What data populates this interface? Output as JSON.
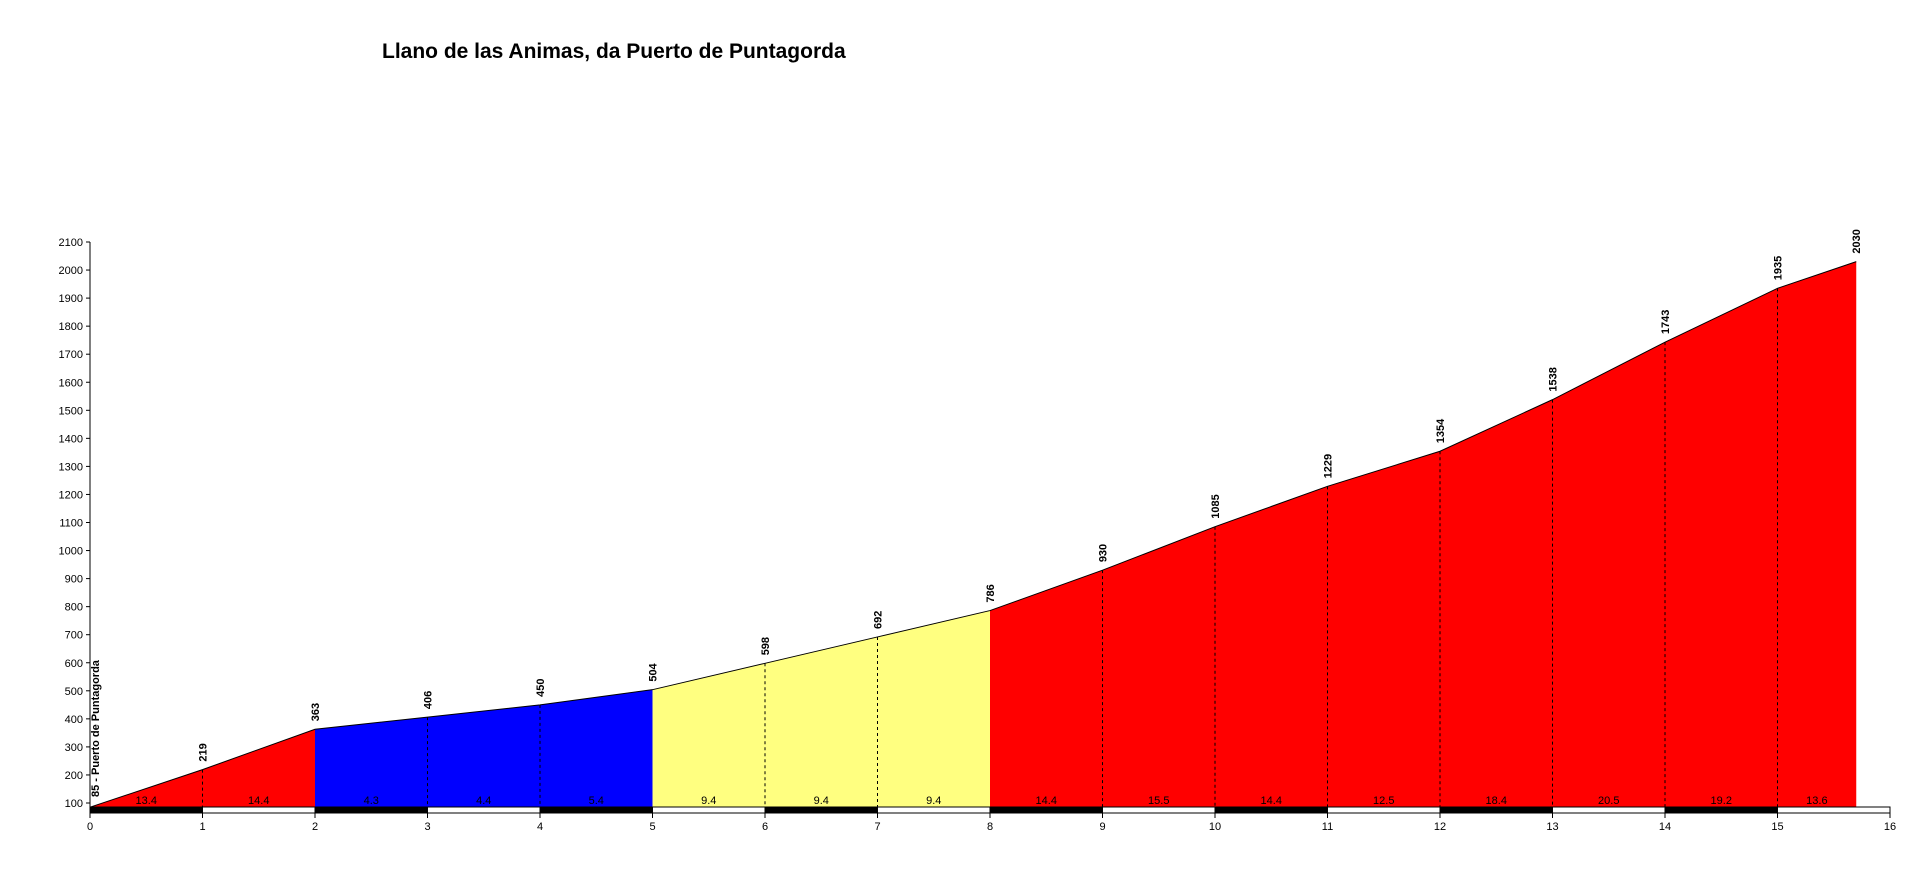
{
  "chart_data": {
    "type": "area",
    "title": "Llano de las Animas, da Puerto de Puntagorda",
    "xlabel": "",
    "ylabel": "",
    "xlim": [
      0,
      16
    ],
    "ylim": [
      85,
      2100
    ],
    "x_ticks": [
      0,
      1,
      2,
      3,
      4,
      5,
      6,
      7,
      8,
      9,
      10,
      11,
      12,
      13,
      14,
      15,
      16
    ],
    "y_ticks": [
      100,
      200,
      300,
      400,
      500,
      600,
      700,
      800,
      900,
      1000,
      1100,
      1200,
      1300,
      1400,
      1500,
      1600,
      1700,
      1800,
      1900,
      2000,
      2100
    ],
    "grid": false,
    "start_label": "85 - Puerto de Puntagorda",
    "profile": [
      {
        "x": 0,
        "y": 85
      },
      {
        "x": 1,
        "y": 219,
        "label": "219"
      },
      {
        "x": 2,
        "y": 363,
        "label": "363"
      },
      {
        "x": 3,
        "y": 406,
        "label": "406"
      },
      {
        "x": 4,
        "y": 450,
        "label": "450"
      },
      {
        "x": 5,
        "y": 504,
        "label": "504"
      },
      {
        "x": 6,
        "y": 598,
        "label": "598"
      },
      {
        "x": 7,
        "y": 692,
        "label": "692"
      },
      {
        "x": 8,
        "y": 786,
        "label": "786"
      },
      {
        "x": 9,
        "y": 930,
        "label": "930"
      },
      {
        "x": 10,
        "y": 1085,
        "label": "1085"
      },
      {
        "x": 11,
        "y": 1229,
        "label": "1229"
      },
      {
        "x": 12,
        "y": 1354,
        "label": "1354"
      },
      {
        "x": 13,
        "y": 1538,
        "label": "1538"
      },
      {
        "x": 14,
        "y": 1743,
        "label": "1743"
      },
      {
        "x": 15,
        "y": 1935,
        "label": "1935"
      },
      {
        "x": 15.7,
        "y": 2030,
        "label": "2030"
      }
    ],
    "segments": [
      {
        "from": 0,
        "to": 1,
        "gradient": "13.4",
        "color": "#ff0000"
      },
      {
        "from": 1,
        "to": 2,
        "gradient": "14.4",
        "color": "#ff0000"
      },
      {
        "from": 2,
        "to": 3,
        "gradient": "4.3",
        "color": "#0000ff"
      },
      {
        "from": 3,
        "to": 4,
        "gradient": "4.4",
        "color": "#0000ff"
      },
      {
        "from": 4,
        "to": 5,
        "gradient": "5.4",
        "color": "#0000ff"
      },
      {
        "from": 5,
        "to": 6,
        "gradient": "9.4",
        "color": "#ffff80"
      },
      {
        "from": 6,
        "to": 7,
        "gradient": "9.4",
        "color": "#ffff80"
      },
      {
        "from": 7,
        "to": 8,
        "gradient": "9.4",
        "color": "#ffff80"
      },
      {
        "from": 8,
        "to": 9,
        "gradient": "14.4",
        "color": "#ff0000"
      },
      {
        "from": 9,
        "to": 10,
        "gradient": "15.5",
        "color": "#ff0000"
      },
      {
        "from": 10,
        "to": 11,
        "gradient": "14.4",
        "color": "#ff0000"
      },
      {
        "from": 11,
        "to": 12,
        "gradient": "12.5",
        "color": "#ff0000"
      },
      {
        "from": 12,
        "to": 13,
        "gradient": "18.4",
        "color": "#ff0000"
      },
      {
        "from": 13,
        "to": 14,
        "gradient": "20.5",
        "color": "#ff0000"
      },
      {
        "from": 14,
        "to": 15,
        "gradient": "19.2",
        "color": "#ff0000"
      },
      {
        "from": 15,
        "to": 15.7,
        "gradient": "13.6",
        "color": "#ff0000"
      }
    ]
  }
}
